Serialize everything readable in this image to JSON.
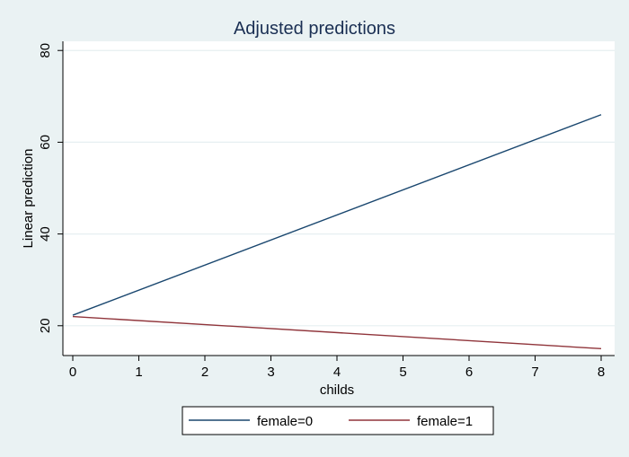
{
  "chart_data": {
    "type": "line",
    "title": "Adjusted predictions",
    "xlabel": "childs",
    "ylabel": "Linear prediction",
    "xlim": [
      0,
      8
    ],
    "ylim": [
      13.5,
      82
    ],
    "xticks": [
      0,
      1,
      2,
      3,
      4,
      5,
      6,
      7,
      8
    ],
    "yticks": [
      20,
      40,
      60,
      80
    ],
    "grid": true,
    "legend_position": "bottom",
    "x": [
      0,
      8
    ],
    "series": [
      {
        "name": "female=0",
        "color": "#1a476f",
        "values": [
          22.3,
          66.0
        ]
      },
      {
        "name": "female=1",
        "color": "#90353b",
        "values": [
          22.0,
          15.0
        ]
      }
    ]
  },
  "colors": {
    "background": "#eaf2f3",
    "plot_background": "#ffffff",
    "title": "#1a2f53",
    "grid": "#e6eff1"
  }
}
